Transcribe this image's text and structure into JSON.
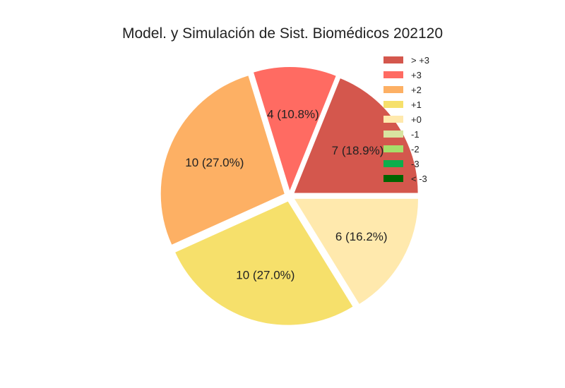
{
  "chart_data": {
    "type": "pie",
    "title": "Model. y Simulación de Sist. Biomédicos 202120",
    "legend_position": "top-right",
    "categories": [
      "> +3",
      "+3",
      "+2",
      "+1",
      "+0",
      "-1",
      "-2",
      "-3",
      "< -3"
    ],
    "values": [
      7,
      4,
      10,
      10,
      6,
      0,
      0,
      0,
      0
    ],
    "labels": [
      "7 (18.9%)",
      "4 (10.8%)",
      "10 (27.0%)",
      "10 (27.0%)",
      "6 (16.2%)",
      "",
      "",
      "",
      ""
    ],
    "colors": [
      "#d4574d",
      "#ff6b62",
      "#fdb064",
      "#f6e06b",
      "#ffe9ad",
      "#d9e4a0",
      "#a6df6a",
      "#0cae4c",
      "#006400"
    ]
  }
}
